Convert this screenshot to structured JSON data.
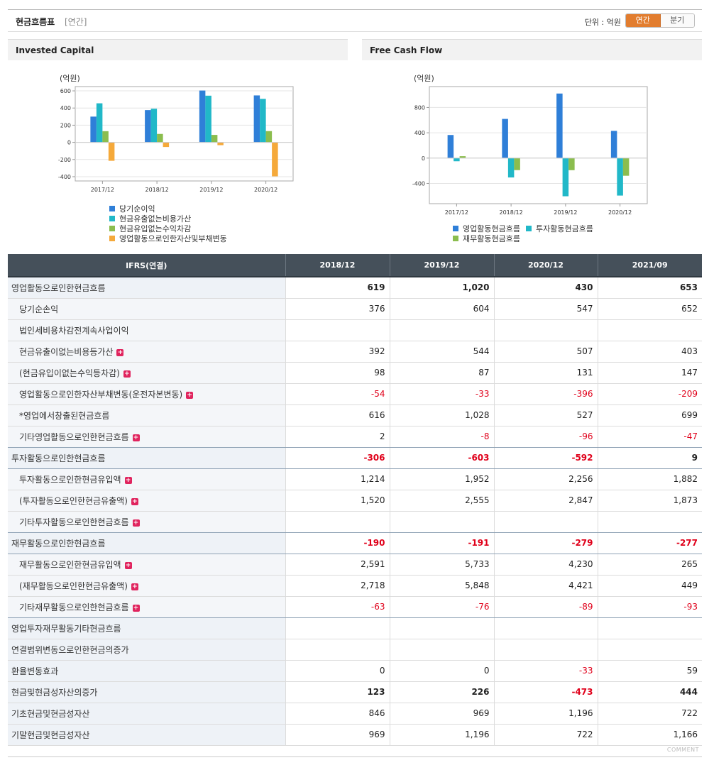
{
  "header": {
    "title": "현금흐름표",
    "period_tag": "[연간]",
    "unit_label": "단위 : 억원",
    "toggle": {
      "annual": "연간",
      "quarterly": "분기"
    }
  },
  "colors": {
    "blue": "#2f7fd8",
    "teal": "#21b8c8",
    "green": "#8bbd4e",
    "orange": "#f5a93a",
    "negative": "#e0001a",
    "table_header": "#45505a",
    "accent": "#e27d2f"
  },
  "chart_data": [
    {
      "type": "bar",
      "title": "Invested Capital",
      "ylabel": "(억원)",
      "categories": [
        "2017/12",
        "2018/12",
        "2019/12",
        "2020/12"
      ],
      "ylim": [
        -450,
        650
      ],
      "yticks": [
        600,
        400,
        200,
        0,
        -200,
        -400
      ],
      "series": [
        {
          "name": "당기순이익",
          "color": "#2f7fd8",
          "values": [
            300,
            376,
            604,
            547
          ]
        },
        {
          "name": "현금유출없는비용가산",
          "color": "#21b8c8",
          "values": [
            455,
            392,
            544,
            507
          ]
        },
        {
          "name": "현금유입없는수익차감",
          "color": "#8bbd4e",
          "values": [
            130,
            98,
            87,
            131
          ]
        },
        {
          "name": "영업활동으로인한자산및부채변동",
          "color": "#f5a93a",
          "values": [
            -215,
            -54,
            -33,
            -396
          ]
        }
      ]
    },
    {
      "type": "bar",
      "title": "Free Cash Flow",
      "ylabel": "(억원)",
      "categories": [
        "2017/12",
        "2018/12",
        "2019/12",
        "2020/12"
      ],
      "ylim": [
        -720,
        1130
      ],
      "yticks": [
        800,
        400,
        0,
        -400
      ],
      "series": [
        {
          "name": "영업활동현금흐름",
          "color": "#2f7fd8",
          "values": [
            365,
            619,
            1020,
            430
          ]
        },
        {
          "name": "투자활동현금흐름",
          "color": "#21b8c8",
          "values": [
            -50,
            -306,
            -603,
            -592
          ]
        },
        {
          "name": "재무활동현금흐름",
          "color": "#8bbd4e",
          "values": [
            30,
            -190,
            -191,
            -279
          ]
        }
      ]
    }
  ],
  "table": {
    "header_label": "IFRS(연결)",
    "columns": [
      "2018/12",
      "2019/12",
      "2020/12",
      "2021/09"
    ],
    "rows": [
      {
        "label": "영업활동으로인한현금흐름",
        "sub": false,
        "plus": false,
        "bold": true,
        "values": [
          "619",
          "1,020",
          "430",
          "653"
        ]
      },
      {
        "label": "당기순손익",
        "sub": true,
        "plus": false,
        "bold": false,
        "values": [
          "376",
          "604",
          "547",
          "652"
        ]
      },
      {
        "label": "법인세비용차감전계속사업이익",
        "sub": true,
        "plus": false,
        "bold": false,
        "values": [
          "",
          "",
          "",
          ""
        ]
      },
      {
        "label": "현금유출이없는비용등가산",
        "sub": true,
        "plus": true,
        "bold": false,
        "values": [
          "392",
          "544",
          "507",
          "403"
        ]
      },
      {
        "label": "(현금유입이없는수익등차감)",
        "sub": true,
        "plus": true,
        "bold": false,
        "values": [
          "98",
          "87",
          "131",
          "147"
        ]
      },
      {
        "label": "영업활동으로인한자산부채변동(운전자본변동)",
        "sub": true,
        "plus": true,
        "bold": false,
        "values": [
          "-54",
          "-33",
          "-396",
          "-209"
        ]
      },
      {
        "label": "*영업에서창출된현금흐름",
        "sub": true,
        "plus": false,
        "bold": false,
        "values": [
          "616",
          "1,028",
          "527",
          "699"
        ]
      },
      {
        "label": "기타영업활동으로인한현금흐름",
        "sub": true,
        "plus": true,
        "bold": false,
        "values": [
          "2",
          "-8",
          "-96",
          "-47"
        ]
      },
      {
        "label": "투자활동으로인한현금흐름",
        "sub": false,
        "plus": false,
        "bold": true,
        "values": [
          "-306",
          "-603",
          "-592",
          "9"
        ]
      },
      {
        "label": "투자활동으로인한현금유입액",
        "sub": true,
        "plus": true,
        "bold": false,
        "values": [
          "1,214",
          "1,952",
          "2,256",
          "1,882"
        ]
      },
      {
        "label": "(투자활동으로인한현금유출액)",
        "sub": true,
        "plus": true,
        "bold": false,
        "values": [
          "1,520",
          "2,555",
          "2,847",
          "1,873"
        ]
      },
      {
        "label": "기타투자활동으로인한현금흐름",
        "sub": true,
        "plus": true,
        "bold": false,
        "values": [
          "",
          "",
          "",
          ""
        ]
      },
      {
        "label": "재무활동으로인한현금흐름",
        "sub": false,
        "plus": false,
        "bold": true,
        "values": [
          "-190",
          "-191",
          "-279",
          "-277"
        ]
      },
      {
        "label": "재무활동으로인한현금유입액",
        "sub": true,
        "plus": true,
        "bold": false,
        "values": [
          "2,591",
          "5,733",
          "4,230",
          "265"
        ]
      },
      {
        "label": "(재무활동으로인한현금유출액)",
        "sub": true,
        "plus": true,
        "bold": false,
        "values": [
          "2,718",
          "5,848",
          "4,421",
          "449"
        ]
      },
      {
        "label": "기타재무활동으로인한현금흐름",
        "sub": true,
        "plus": true,
        "bold": false,
        "values": [
          "-63",
          "-76",
          "-89",
          "-93"
        ]
      },
      {
        "label": "영업투자재무활동기타현금흐름",
        "sub": false,
        "plus": false,
        "bold": false,
        "values": [
          "",
          "",
          "",
          ""
        ]
      },
      {
        "label": "연결범위변동으로인한현금의증가",
        "sub": false,
        "plus": false,
        "bold": false,
        "values": [
          "",
          "",
          "",
          ""
        ]
      },
      {
        "label": "환율변동효과",
        "sub": false,
        "plus": false,
        "bold": false,
        "values": [
          "0",
          "0",
          "-33",
          "59"
        ]
      },
      {
        "label": "현금및현금성자산의증가",
        "sub": false,
        "plus": false,
        "bold": true,
        "values": [
          "123",
          "226",
          "-473",
          "444"
        ]
      },
      {
        "label": "기초현금및현금성자산",
        "sub": false,
        "plus": false,
        "bold": false,
        "values": [
          "846",
          "969",
          "1,196",
          "722"
        ]
      },
      {
        "label": "기말현금및현금성자산",
        "sub": false,
        "plus": false,
        "bold": false,
        "values": [
          "969",
          "1,196",
          "722",
          "1,166"
        ]
      }
    ]
  },
  "footer": {
    "comment": "COMMENT"
  }
}
